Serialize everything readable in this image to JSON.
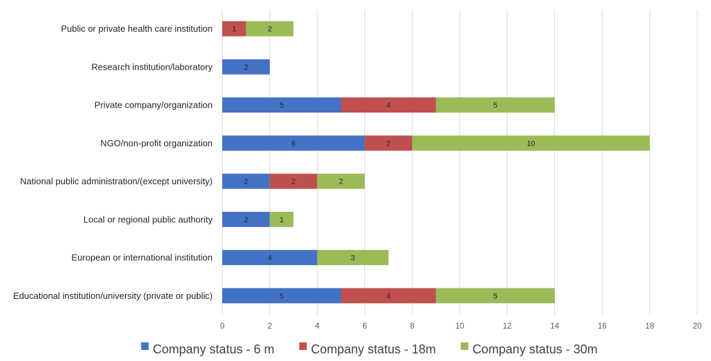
{
  "chart_data": {
    "type": "bar",
    "orientation": "horizontal",
    "stacked": true,
    "categories": [
      "Public or private health care institution",
      "Research institution/laboratory",
      "Private company/organization",
      "NGO/non-profit organization",
      "National public administration/(except university)",
      "Local or regional public authority",
      "European or international institution",
      "Educational institution/university (private or public)"
    ],
    "series": [
      {
        "name": "Company status - 6 m",
        "color": "#4472C4",
        "values": [
          null,
          2,
          5,
          6,
          2,
          2,
          4,
          5
        ]
      },
      {
        "name": "Company status - 18m",
        "color": "#C0504D",
        "values": [
          1,
          null,
          4,
          2,
          2,
          null,
          null,
          4
        ]
      },
      {
        "name": "Company status - 30m",
        "color": "#9BBB59",
        "values": [
          2,
          null,
          5,
          10,
          2,
          1,
          3,
          5
        ]
      }
    ],
    "xlim": [
      0,
      20
    ],
    "xticks": [
      "0",
      "2",
      "4",
      "6",
      "8",
      "10",
      "12",
      "14",
      "16",
      "18",
      "20"
    ],
    "grid": true,
    "legend": "bottom",
    "title": "",
    "xlabel": "",
    "ylabel": ""
  }
}
